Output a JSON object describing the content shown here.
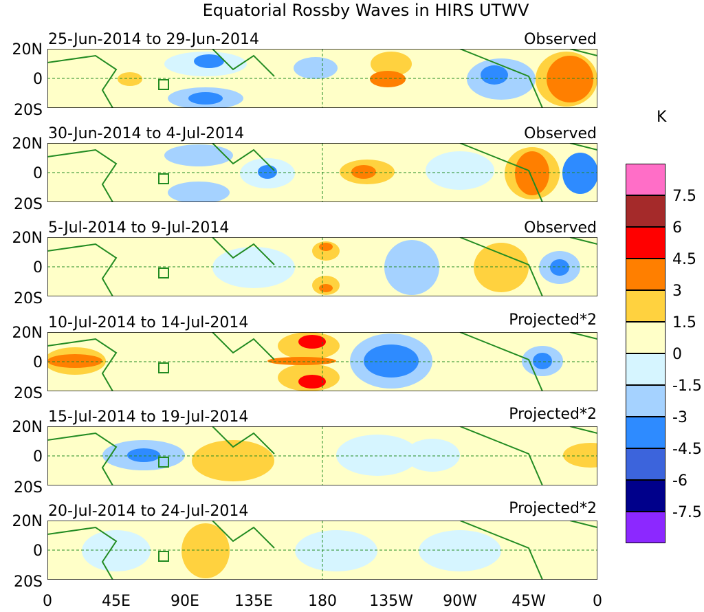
{
  "title": "Equatorial Rossby Waves in HIRS UTWV",
  "panels": [
    {
      "period": "25-Jun-2014 to 29-Jun-2014",
      "type": "Observed"
    },
    {
      "period": "30-Jun-2014 to 4-Jul-2014",
      "type": "Observed"
    },
    {
      "period": "5-Jul-2014 to 9-Jul-2014",
      "type": "Observed"
    },
    {
      "period": "10-Jul-2014 to 14-Jul-2014",
      "type": "Projected*2"
    },
    {
      "period": "15-Jul-2014 to 19-Jul-2014",
      "type": "Projected*2"
    },
    {
      "period": "20-Jul-2014 to 24-Jul-2014",
      "type": "Projected*2"
    }
  ],
  "lat_labels": [
    "20N",
    "0",
    "20S"
  ],
  "lon_labels": [
    "0",
    "45E",
    "90E",
    "135E",
    "180",
    "135W",
    "90W",
    "45W",
    "0"
  ],
  "colorbar": {
    "unit": "K",
    "labels": [
      "7.5",
      "6",
      "4.5",
      "3",
      "1.5",
      "0",
      "-1.5",
      "-3",
      "-4.5",
      "-6",
      "-7.5"
    ],
    "colors": [
      "#ff6ec7",
      "#a52a2a",
      "#ff0000",
      "#ff7f00",
      "#ffd23f",
      "#ffffc8",
      "#d6f5ff",
      "#a5d2ff",
      "#2e8bff",
      "#3c64dc",
      "#00008b",
      "#8c28ff"
    ]
  },
  "map_colors": {
    "land": "#228b22",
    "center_line": "#228b22",
    "background": "#ffffc8"
  }
}
